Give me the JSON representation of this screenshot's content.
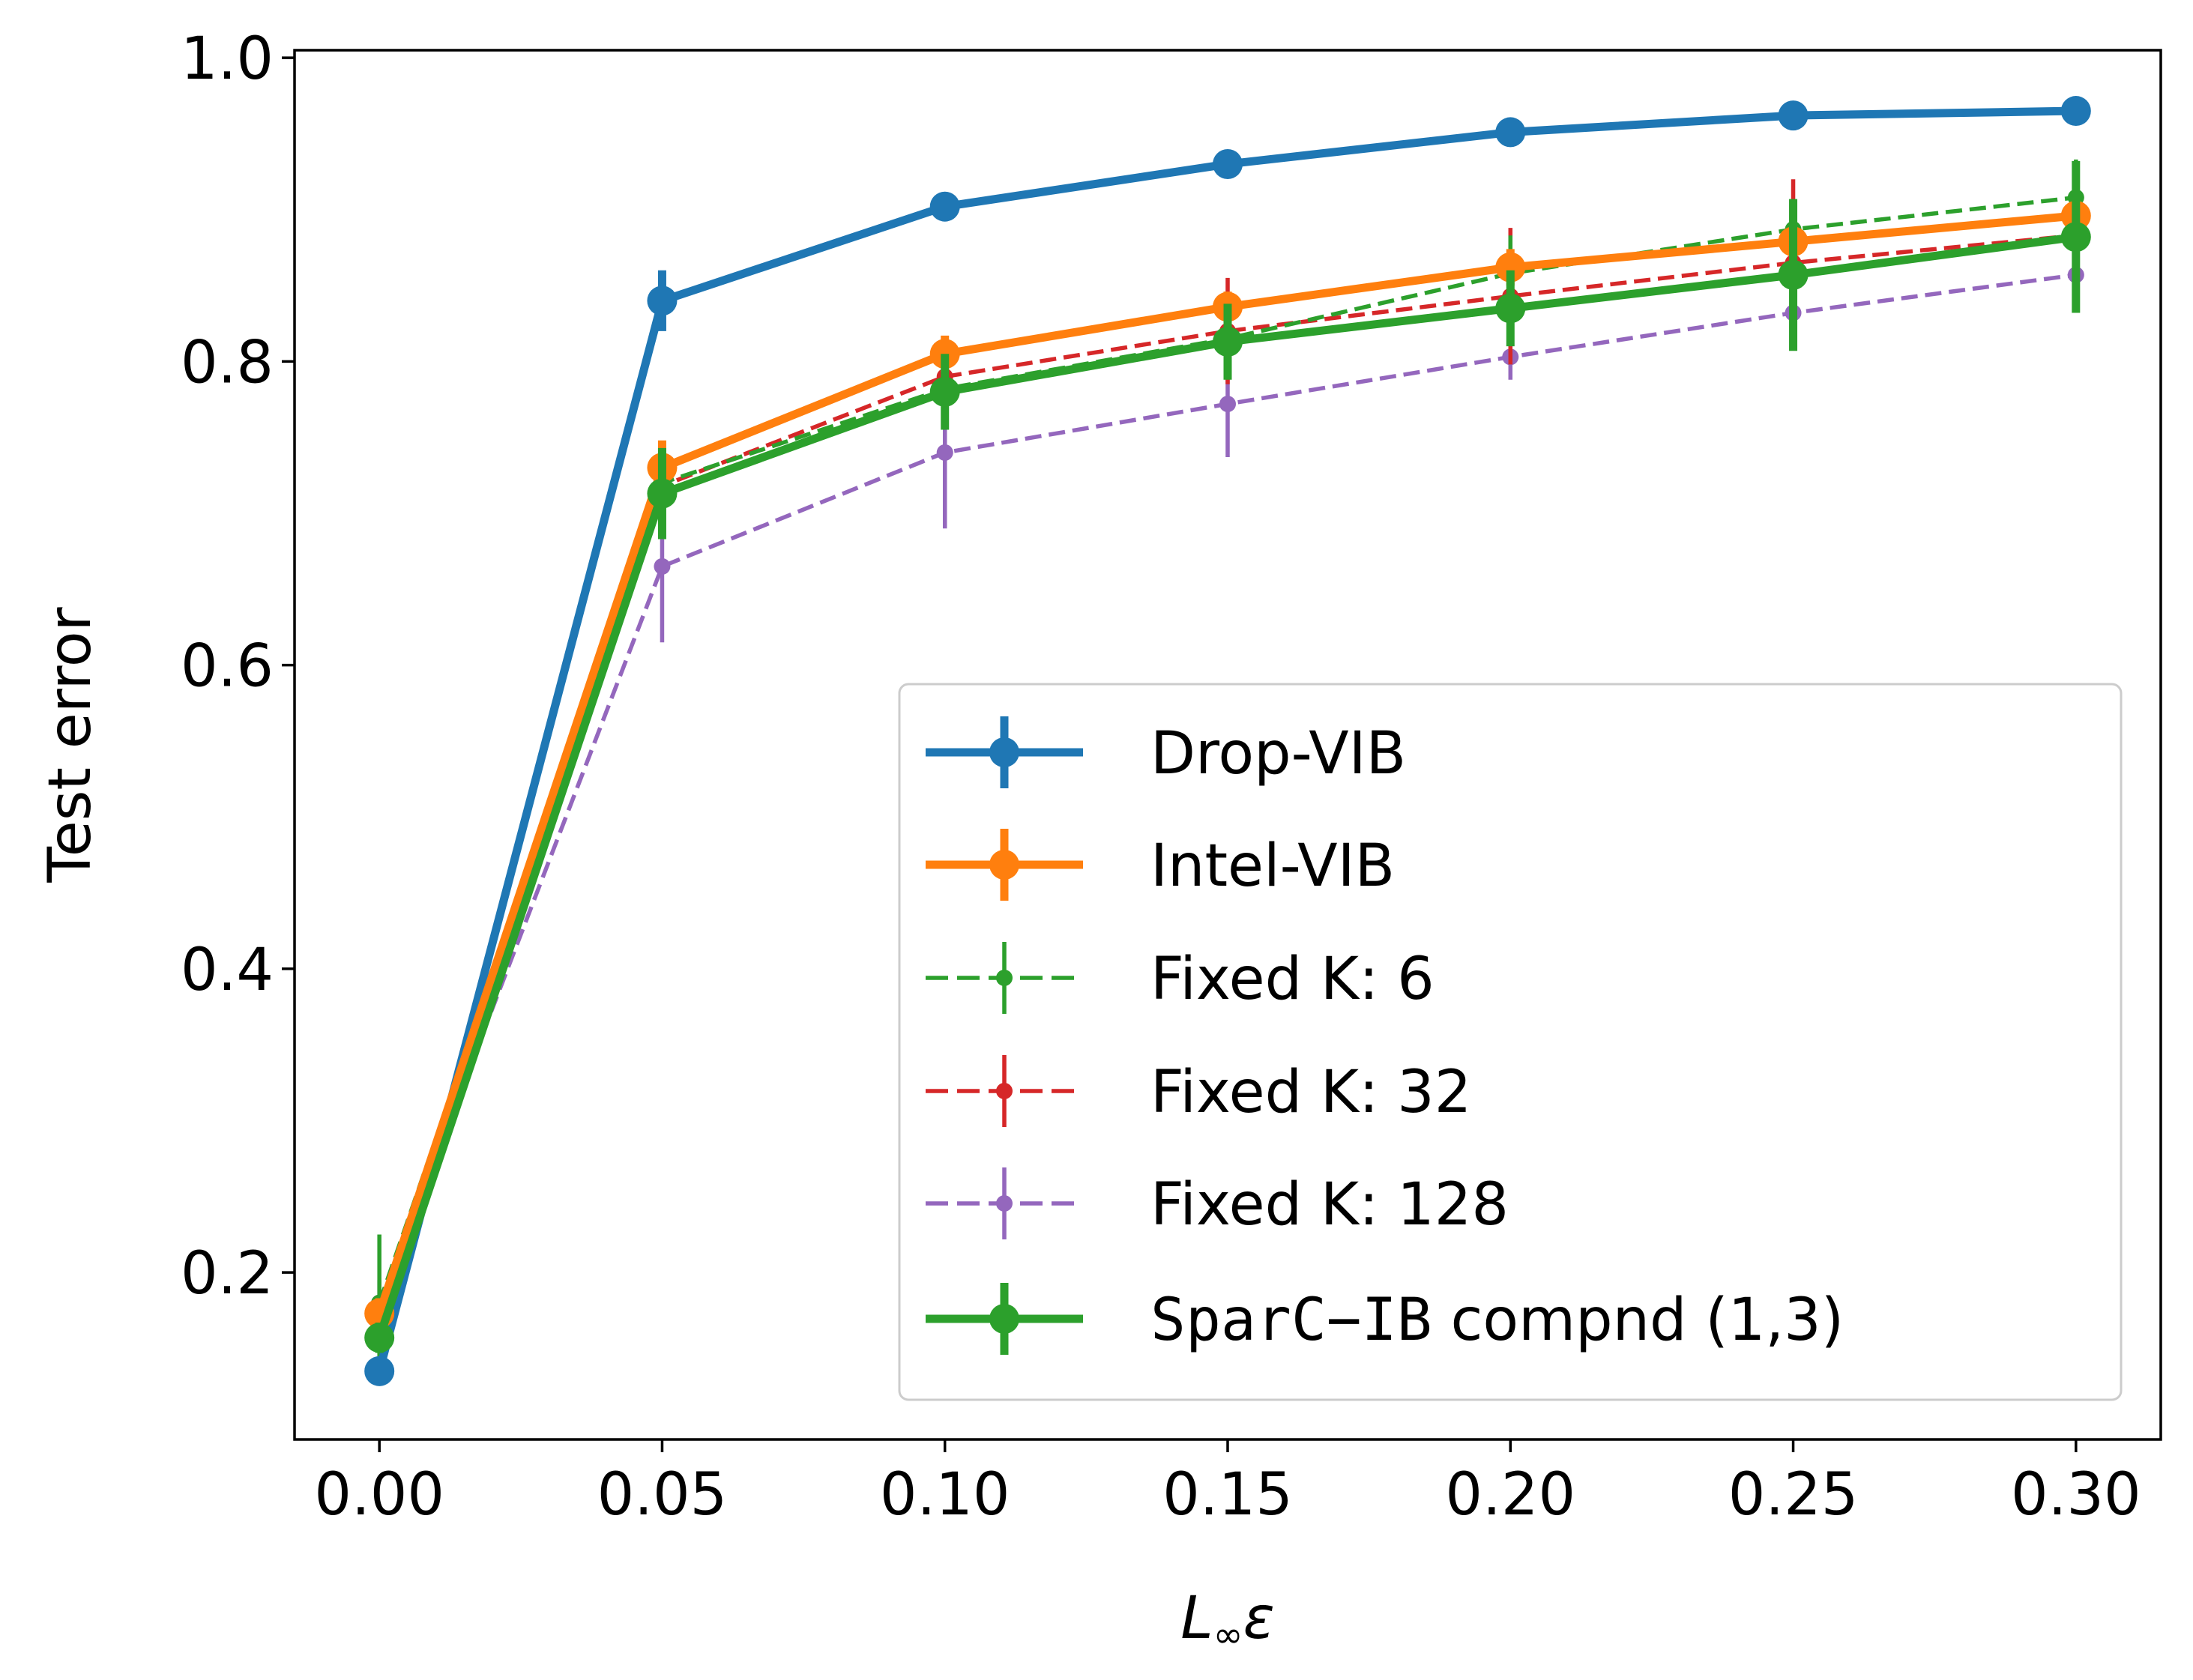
{
  "chart_data": {
    "type": "line",
    "title": "",
    "xlabel_main": "L",
    "xlabel_sub": "∞",
    "xlabel_eps": "ε",
    "ylabel": "Test error",
    "xlim": [
      -0.015,
      0.315
    ],
    "ylim": [
      0.09,
      1.005
    ],
    "x": [
      0.0,
      0.05,
      0.1,
      0.15,
      0.2,
      0.25,
      0.3
    ],
    "x_tick_labels": [
      "0.00",
      "0.05",
      "0.10",
      "0.15",
      "0.20",
      "0.25",
      "0.30"
    ],
    "y_ticks": [
      0.2,
      0.4,
      0.6,
      0.8,
      1.0
    ],
    "y_tick_labels": [
      "0.2",
      "0.4",
      "0.6",
      "0.8",
      "1.0"
    ],
    "legend_position": "lower-right",
    "series": [
      {
        "name": "Drop-VIB",
        "color": "#1f77b4",
        "style": "solid-thick",
        "values": [
          0.135,
          0.84,
          0.902,
          0.93,
          0.951,
          0.962,
          0.965
        ],
        "errors": [
          0.0,
          0.02,
          0.005,
          0.005,
          0.004,
          0.004,
          0.003
        ]
      },
      {
        "name": "Intel-VIB",
        "color": "#ff7f0e",
        "style": "solid-thick",
        "values": [
          0.173,
          0.73,
          0.805,
          0.836,
          0.862,
          0.879,
          0.896
        ],
        "errors": [
          0.01,
          0.018,
          0.012,
          0.01,
          0.012,
          0.01,
          0.01
        ]
      },
      {
        "name": "Fixed K: 6",
        "color": "#2ca02c",
        "style": "dashed-thin",
        "values": [
          0.18,
          0.72,
          0.782,
          0.815,
          0.858,
          0.887,
          0.908
        ],
        "errors": [
          0.045,
          0.02,
          0.025,
          0.02,
          0.025,
          0.02,
          0.025
        ]
      },
      {
        "name": "Fixed K: 32",
        "color": "#d62728",
        "style": "dashed-thin",
        "values": [
          0.175,
          0.718,
          0.79,
          0.82,
          0.843,
          0.865,
          0.883
        ],
        "errors": [
          0.01,
          0.028,
          0.025,
          0.035,
          0.045,
          0.055,
          0.02
        ]
      },
      {
        "name": "Fixed K: 128",
        "color": "#9467bd",
        "style": "dashed-thin",
        "values": [
          0.18,
          0.665,
          0.74,
          0.772,
          0.803,
          0.832,
          0.857
        ],
        "errors": [
          0.015,
          0.05,
          0.05,
          0.035,
          0.015,
          0.01,
          0.01
        ]
      },
      {
        "name": "SparC-IB compnd (1,3)",
        "name_prefix": "SparC−IB",
        "name_suffix": " compnd (1,3)",
        "color": "#2ca02c",
        "style": "solid-thick",
        "values": [
          0.157,
          0.713,
          0.78,
          0.813,
          0.835,
          0.857,
          0.882
        ],
        "errors": [
          0.01,
          0.03,
          0.025,
          0.025,
          0.025,
          0.05,
          0.05
        ]
      }
    ]
  }
}
